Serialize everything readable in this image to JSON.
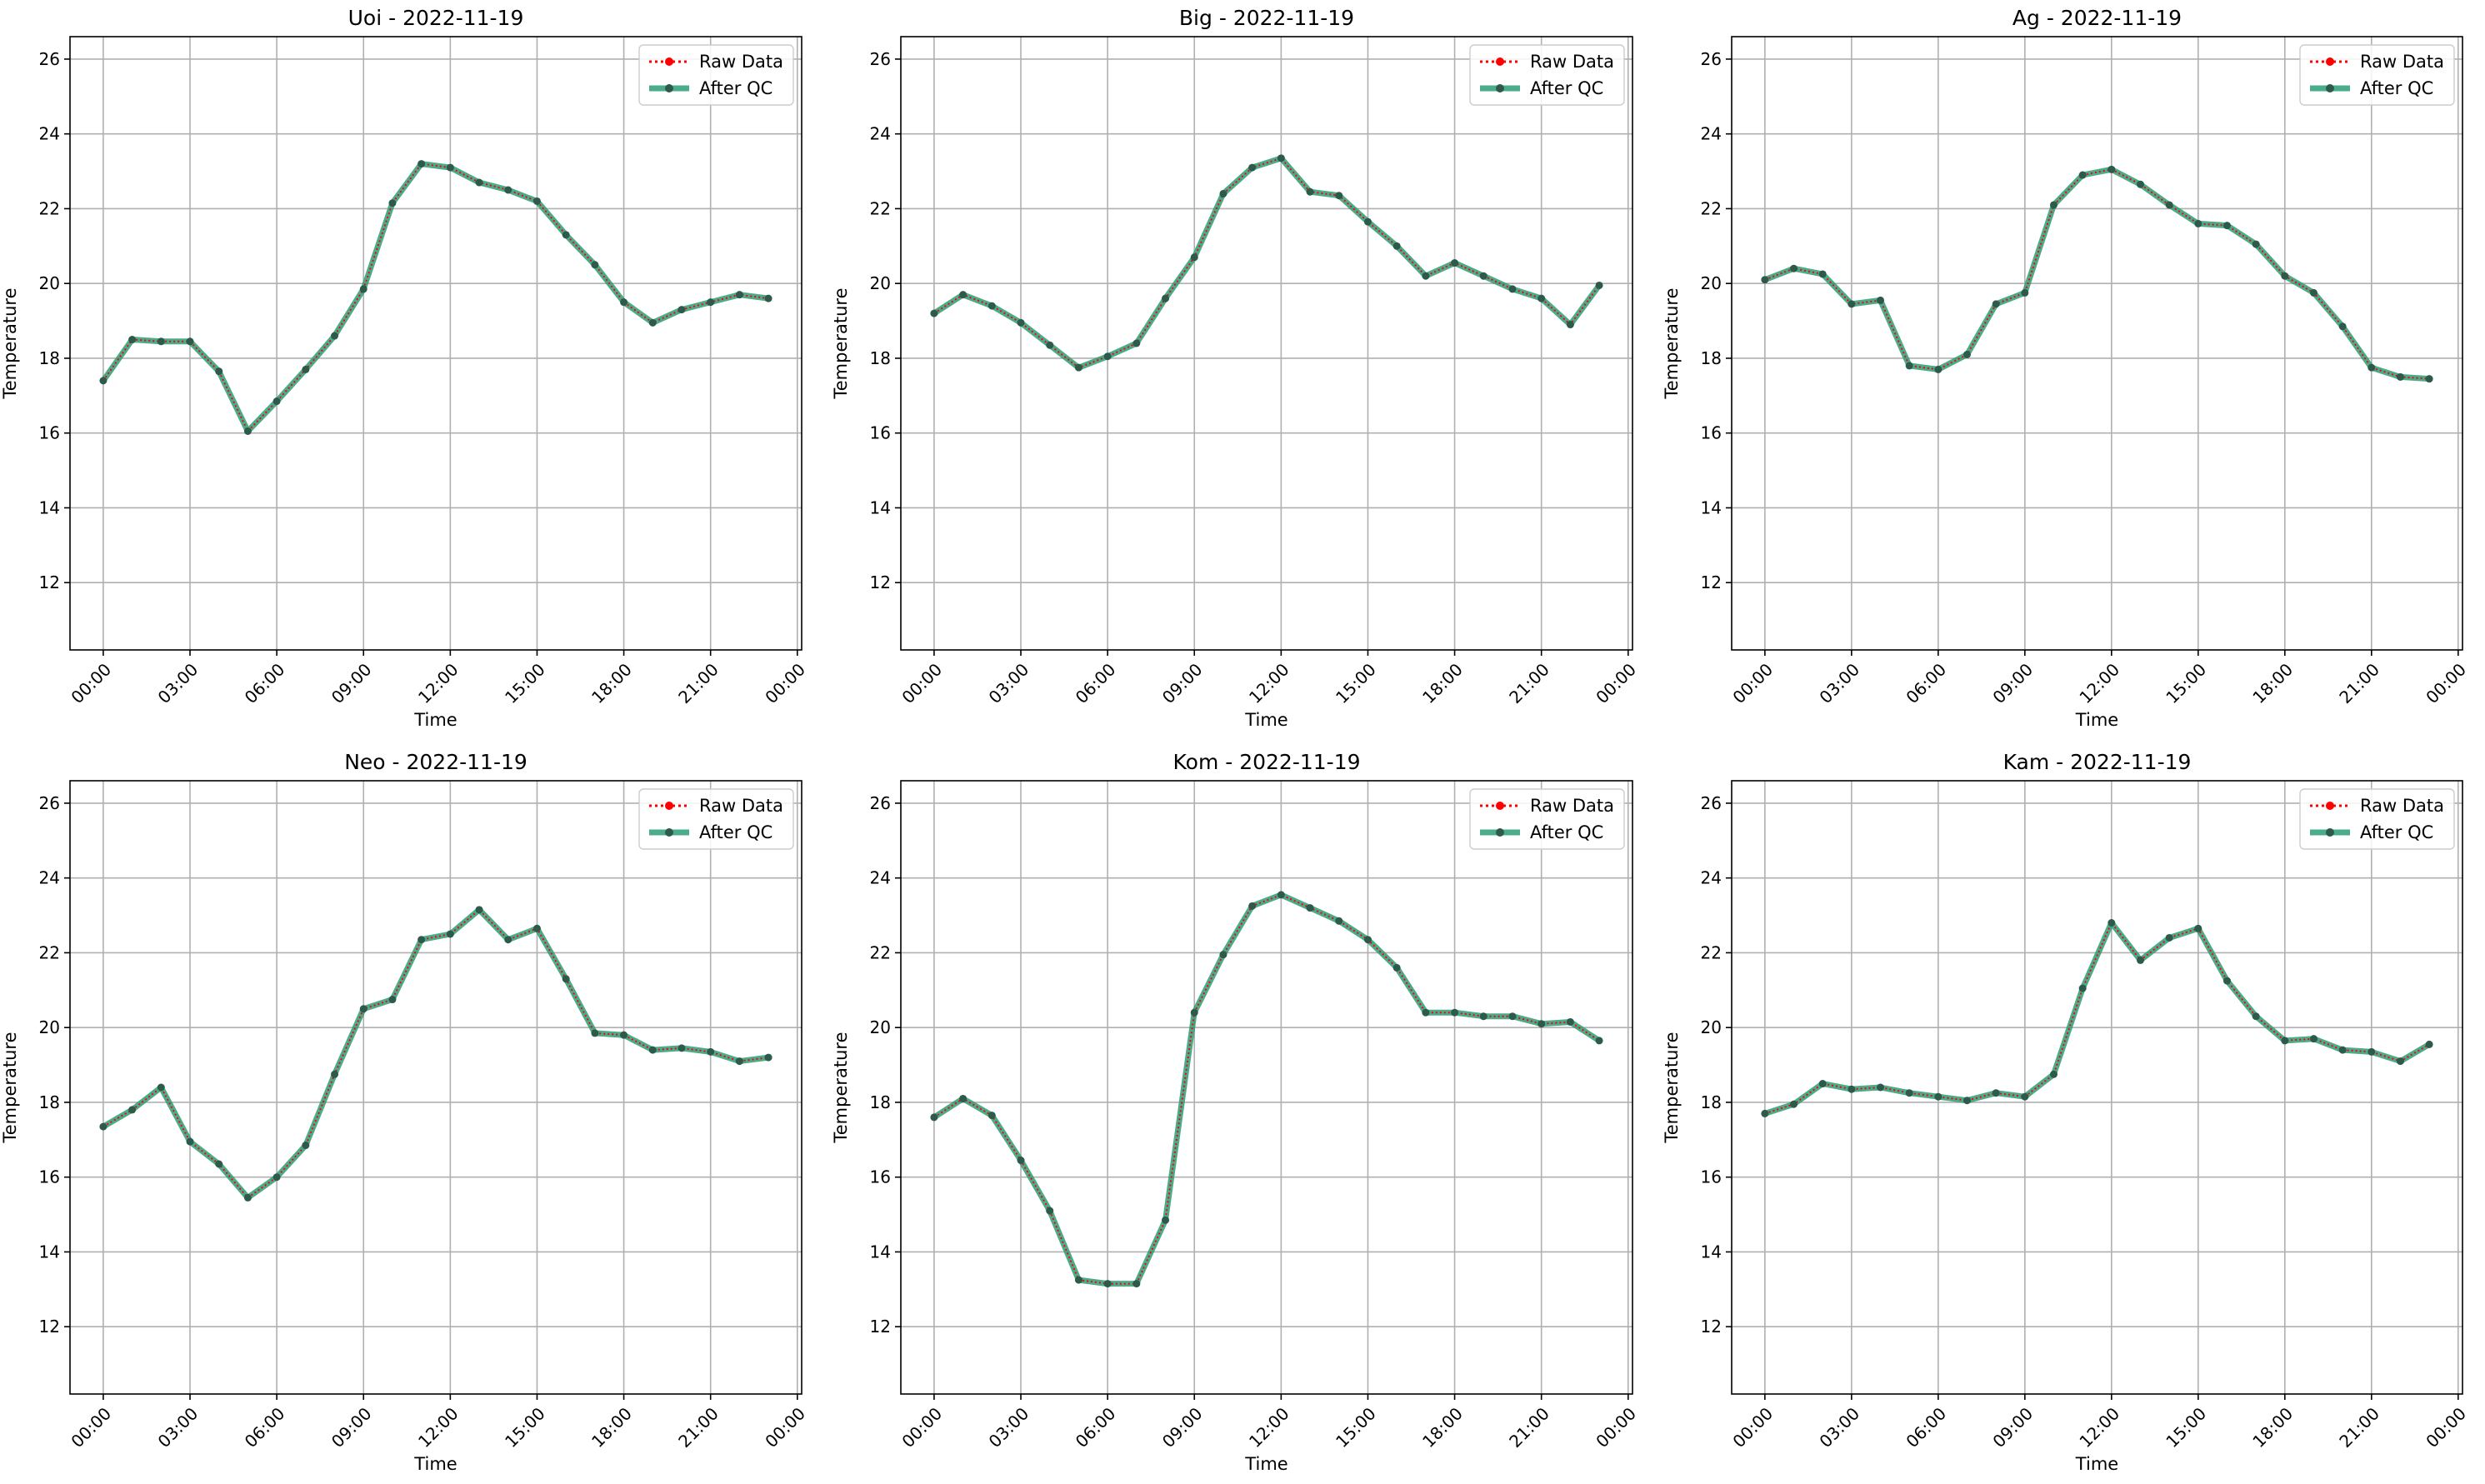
{
  "figure": {
    "background": "#ffffff",
    "colors": {
      "raw": "#ff0000",
      "qc": "#2a9d77",
      "marker": "#2d5a4a",
      "grid": "#b0b0b0",
      "axis": "#000000"
    }
  },
  "chart_data": [
    {
      "type": "line",
      "title": "Uoi - 2022-11-19",
      "xlabel": "Time",
      "ylabel": "Temperature",
      "x_ticks": [
        "00:00",
        "03:00",
        "06:00",
        "09:00",
        "12:00",
        "15:00",
        "18:00",
        "21:00",
        "00:00"
      ],
      "y_ticks": [
        "12",
        "14",
        "16",
        "18",
        "20",
        "22",
        "24",
        "26"
      ],
      "xlim_hours": [
        -1.15,
        24.15
      ],
      "ylim": [
        10.2,
        26.6
      ],
      "grid": true,
      "legend": "top-right",
      "x_hours": [
        0,
        1,
        2,
        3,
        4,
        5,
        6,
        7,
        8,
        9,
        10,
        11,
        12,
        13,
        14,
        15,
        16,
        17,
        18,
        19,
        20,
        21,
        22,
        23
      ],
      "series": [
        {
          "name": "Raw Data",
          "style": "dotted",
          "values": [
            17.4,
            18.5,
            18.45,
            18.45,
            17.65,
            16.05,
            16.85,
            17.7,
            18.6,
            19.85,
            22.15,
            23.2,
            23.1,
            22.7,
            22.5,
            22.2,
            21.3,
            20.5,
            19.5,
            18.95,
            19.3,
            19.5,
            19.7,
            19.6
          ]
        },
        {
          "name": "After QC",
          "style": "solid",
          "values": [
            17.4,
            18.5,
            18.45,
            18.45,
            17.65,
            16.05,
            16.85,
            17.7,
            18.6,
            19.85,
            22.15,
            23.2,
            23.1,
            22.7,
            22.5,
            22.2,
            21.3,
            20.5,
            19.5,
            18.95,
            19.3,
            19.5,
            19.7,
            19.6
          ]
        }
      ]
    },
    {
      "type": "line",
      "title": "Big - 2022-11-19",
      "xlabel": "Time",
      "ylabel": "Temperature",
      "x_ticks": [
        "00:00",
        "03:00",
        "06:00",
        "09:00",
        "12:00",
        "15:00",
        "18:00",
        "21:00",
        "00:00"
      ],
      "y_ticks": [
        "12",
        "14",
        "16",
        "18",
        "20",
        "22",
        "24",
        "26"
      ],
      "xlim_hours": [
        -1.15,
        24.15
      ],
      "ylim": [
        10.2,
        26.6
      ],
      "grid": true,
      "legend": "top-right",
      "x_hours": [
        0,
        1,
        2,
        3,
        4,
        5,
        6,
        7,
        8,
        9,
        10,
        11,
        12,
        13,
        14,
        15,
        16,
        17,
        18,
        19,
        20,
        21,
        22,
        23
      ],
      "series": [
        {
          "name": "Raw Data",
          "style": "dotted",
          "values": [
            19.2,
            19.7,
            19.4,
            18.95,
            18.35,
            17.75,
            18.05,
            18.4,
            19.6,
            20.7,
            22.4,
            23.1,
            23.35,
            22.45,
            22.35,
            21.65,
            21.0,
            20.2,
            20.55,
            20.2,
            19.85,
            19.6,
            18.9,
            19.95
          ]
        },
        {
          "name": "After QC",
          "style": "solid",
          "values": [
            19.2,
            19.7,
            19.4,
            18.95,
            18.35,
            17.75,
            18.05,
            18.4,
            19.6,
            20.7,
            22.4,
            23.1,
            23.35,
            22.45,
            22.35,
            21.65,
            21.0,
            20.2,
            20.55,
            20.2,
            19.85,
            19.6,
            18.9,
            19.95
          ]
        }
      ]
    },
    {
      "type": "line",
      "title": "Ag - 2022-11-19",
      "xlabel": "Time",
      "ylabel": "Temperature",
      "x_ticks": [
        "00:00",
        "03:00",
        "06:00",
        "09:00",
        "12:00",
        "15:00",
        "18:00",
        "21:00",
        "00:00"
      ],
      "y_ticks": [
        "12",
        "14",
        "16",
        "18",
        "20",
        "22",
        "24",
        "26"
      ],
      "xlim_hours": [
        -1.15,
        24.15
      ],
      "ylim": [
        10.2,
        26.6
      ],
      "grid": true,
      "legend": "top-right",
      "x_hours": [
        0,
        1,
        2,
        3,
        4,
        5,
        6,
        7,
        8,
        9,
        10,
        11,
        12,
        13,
        14,
        15,
        16,
        17,
        18,
        19,
        20,
        21,
        22,
        23
      ],
      "series": [
        {
          "name": "Raw Data",
          "style": "dotted",
          "values": [
            20.1,
            20.4,
            20.25,
            19.45,
            19.55,
            17.8,
            17.7,
            18.1,
            19.45,
            19.75,
            22.1,
            22.9,
            23.05,
            22.65,
            22.1,
            21.6,
            21.55,
            21.05,
            20.2,
            19.75,
            18.85,
            17.75,
            17.5,
            17.45
          ]
        },
        {
          "name": "After QC",
          "style": "solid",
          "values": [
            20.1,
            20.4,
            20.25,
            19.45,
            19.55,
            17.8,
            17.7,
            18.1,
            19.45,
            19.75,
            22.1,
            22.9,
            23.05,
            22.65,
            22.1,
            21.6,
            21.55,
            21.05,
            20.2,
            19.75,
            18.85,
            17.75,
            17.5,
            17.45
          ]
        }
      ]
    },
    {
      "type": "line",
      "title": "Neo - 2022-11-19",
      "xlabel": "Time",
      "ylabel": "Temperature",
      "x_ticks": [
        "00:00",
        "03:00",
        "06:00",
        "09:00",
        "12:00",
        "15:00",
        "18:00",
        "21:00",
        "00:00"
      ],
      "y_ticks": [
        "12",
        "14",
        "16",
        "18",
        "20",
        "22",
        "24",
        "26"
      ],
      "xlim_hours": [
        -1.15,
        24.15
      ],
      "ylim": [
        10.2,
        26.6
      ],
      "grid": true,
      "legend": "top-right",
      "x_hours": [
        0,
        1,
        2,
        3,
        4,
        5,
        6,
        7,
        8,
        9,
        10,
        11,
        12,
        13,
        14,
        15,
        16,
        17,
        18,
        19,
        20,
        21,
        22,
        23
      ],
      "series": [
        {
          "name": "Raw Data",
          "style": "dotted",
          "values": [
            17.35,
            17.8,
            18.4,
            16.95,
            16.35,
            15.45,
            16.0,
            16.85,
            18.75,
            20.5,
            20.75,
            22.35,
            22.5,
            23.15,
            22.35,
            22.65,
            21.3,
            19.85,
            19.8,
            19.4,
            19.45,
            19.35,
            19.1,
            19.2
          ]
        },
        {
          "name": "After QC",
          "style": "solid",
          "values": [
            17.35,
            17.8,
            18.4,
            16.95,
            16.35,
            15.45,
            16.0,
            16.85,
            18.75,
            20.5,
            20.75,
            22.35,
            22.5,
            23.15,
            22.35,
            22.65,
            21.3,
            19.85,
            19.8,
            19.4,
            19.45,
            19.35,
            19.1,
            19.2
          ]
        }
      ]
    },
    {
      "type": "line",
      "title": "Kom - 2022-11-19",
      "xlabel": "Time",
      "ylabel": "Temperature",
      "x_ticks": [
        "00:00",
        "03:00",
        "06:00",
        "09:00",
        "12:00",
        "15:00",
        "18:00",
        "21:00",
        "00:00"
      ],
      "y_ticks": [
        "12",
        "14",
        "16",
        "18",
        "20",
        "22",
        "24",
        "26"
      ],
      "xlim_hours": [
        -1.15,
        24.15
      ],
      "ylim": [
        10.2,
        26.6
      ],
      "grid": true,
      "legend": "top-right",
      "x_hours": [
        0,
        1,
        2,
        3,
        4,
        5,
        6,
        7,
        8,
        9,
        10,
        11,
        12,
        13,
        14,
        15,
        16,
        17,
        18,
        19,
        20,
        21,
        22,
        23
      ],
      "series": [
        {
          "name": "Raw Data",
          "style": "dotted",
          "values": [
            17.6,
            18.1,
            17.65,
            16.45,
            15.1,
            13.25,
            13.15,
            13.15,
            14.85,
            20.4,
            21.95,
            23.25,
            23.55,
            23.2,
            22.85,
            22.35,
            21.6,
            20.4,
            20.4,
            20.3,
            20.3,
            20.1,
            20.15,
            19.65
          ]
        },
        {
          "name": "After QC",
          "style": "solid",
          "values": [
            17.6,
            18.1,
            17.65,
            16.45,
            15.1,
            13.25,
            13.15,
            13.15,
            14.85,
            20.4,
            21.95,
            23.25,
            23.55,
            23.2,
            22.85,
            22.35,
            21.6,
            20.4,
            20.4,
            20.3,
            20.3,
            20.1,
            20.15,
            19.65
          ]
        }
      ]
    },
    {
      "type": "line",
      "title": "Kam - 2022-11-19",
      "xlabel": "Time",
      "ylabel": "Temperature",
      "x_ticks": [
        "00:00",
        "03:00",
        "06:00",
        "09:00",
        "12:00",
        "15:00",
        "18:00",
        "21:00",
        "00:00"
      ],
      "y_ticks": [
        "12",
        "14",
        "16",
        "18",
        "20",
        "22",
        "24",
        "26"
      ],
      "xlim_hours": [
        -1.15,
        24.15
      ],
      "ylim": [
        10.2,
        26.6
      ],
      "grid": true,
      "legend": "top-right",
      "x_hours": [
        0,
        1,
        2,
        3,
        4,
        5,
        6,
        7,
        8,
        9,
        10,
        11,
        12,
        13,
        14,
        15,
        16,
        17,
        18,
        19,
        20,
        21,
        22,
        23
      ],
      "series": [
        {
          "name": "Raw Data",
          "style": "dotted",
          "values": [
            17.7,
            17.95,
            18.5,
            18.35,
            18.4,
            18.25,
            18.15,
            18.05,
            18.25,
            18.15,
            18.75,
            21.05,
            22.8,
            21.8,
            22.4,
            22.65,
            21.25,
            20.3,
            19.65,
            19.7,
            19.4,
            19.35,
            19.1,
            19.55
          ]
        },
        {
          "name": "After QC",
          "style": "solid",
          "values": [
            17.7,
            17.95,
            18.5,
            18.35,
            18.4,
            18.25,
            18.15,
            18.05,
            18.25,
            18.15,
            18.75,
            21.05,
            22.8,
            21.8,
            22.4,
            22.65,
            21.25,
            20.3,
            19.65,
            19.7,
            19.4,
            19.35,
            19.1,
            19.55
          ]
        }
      ]
    }
  ]
}
